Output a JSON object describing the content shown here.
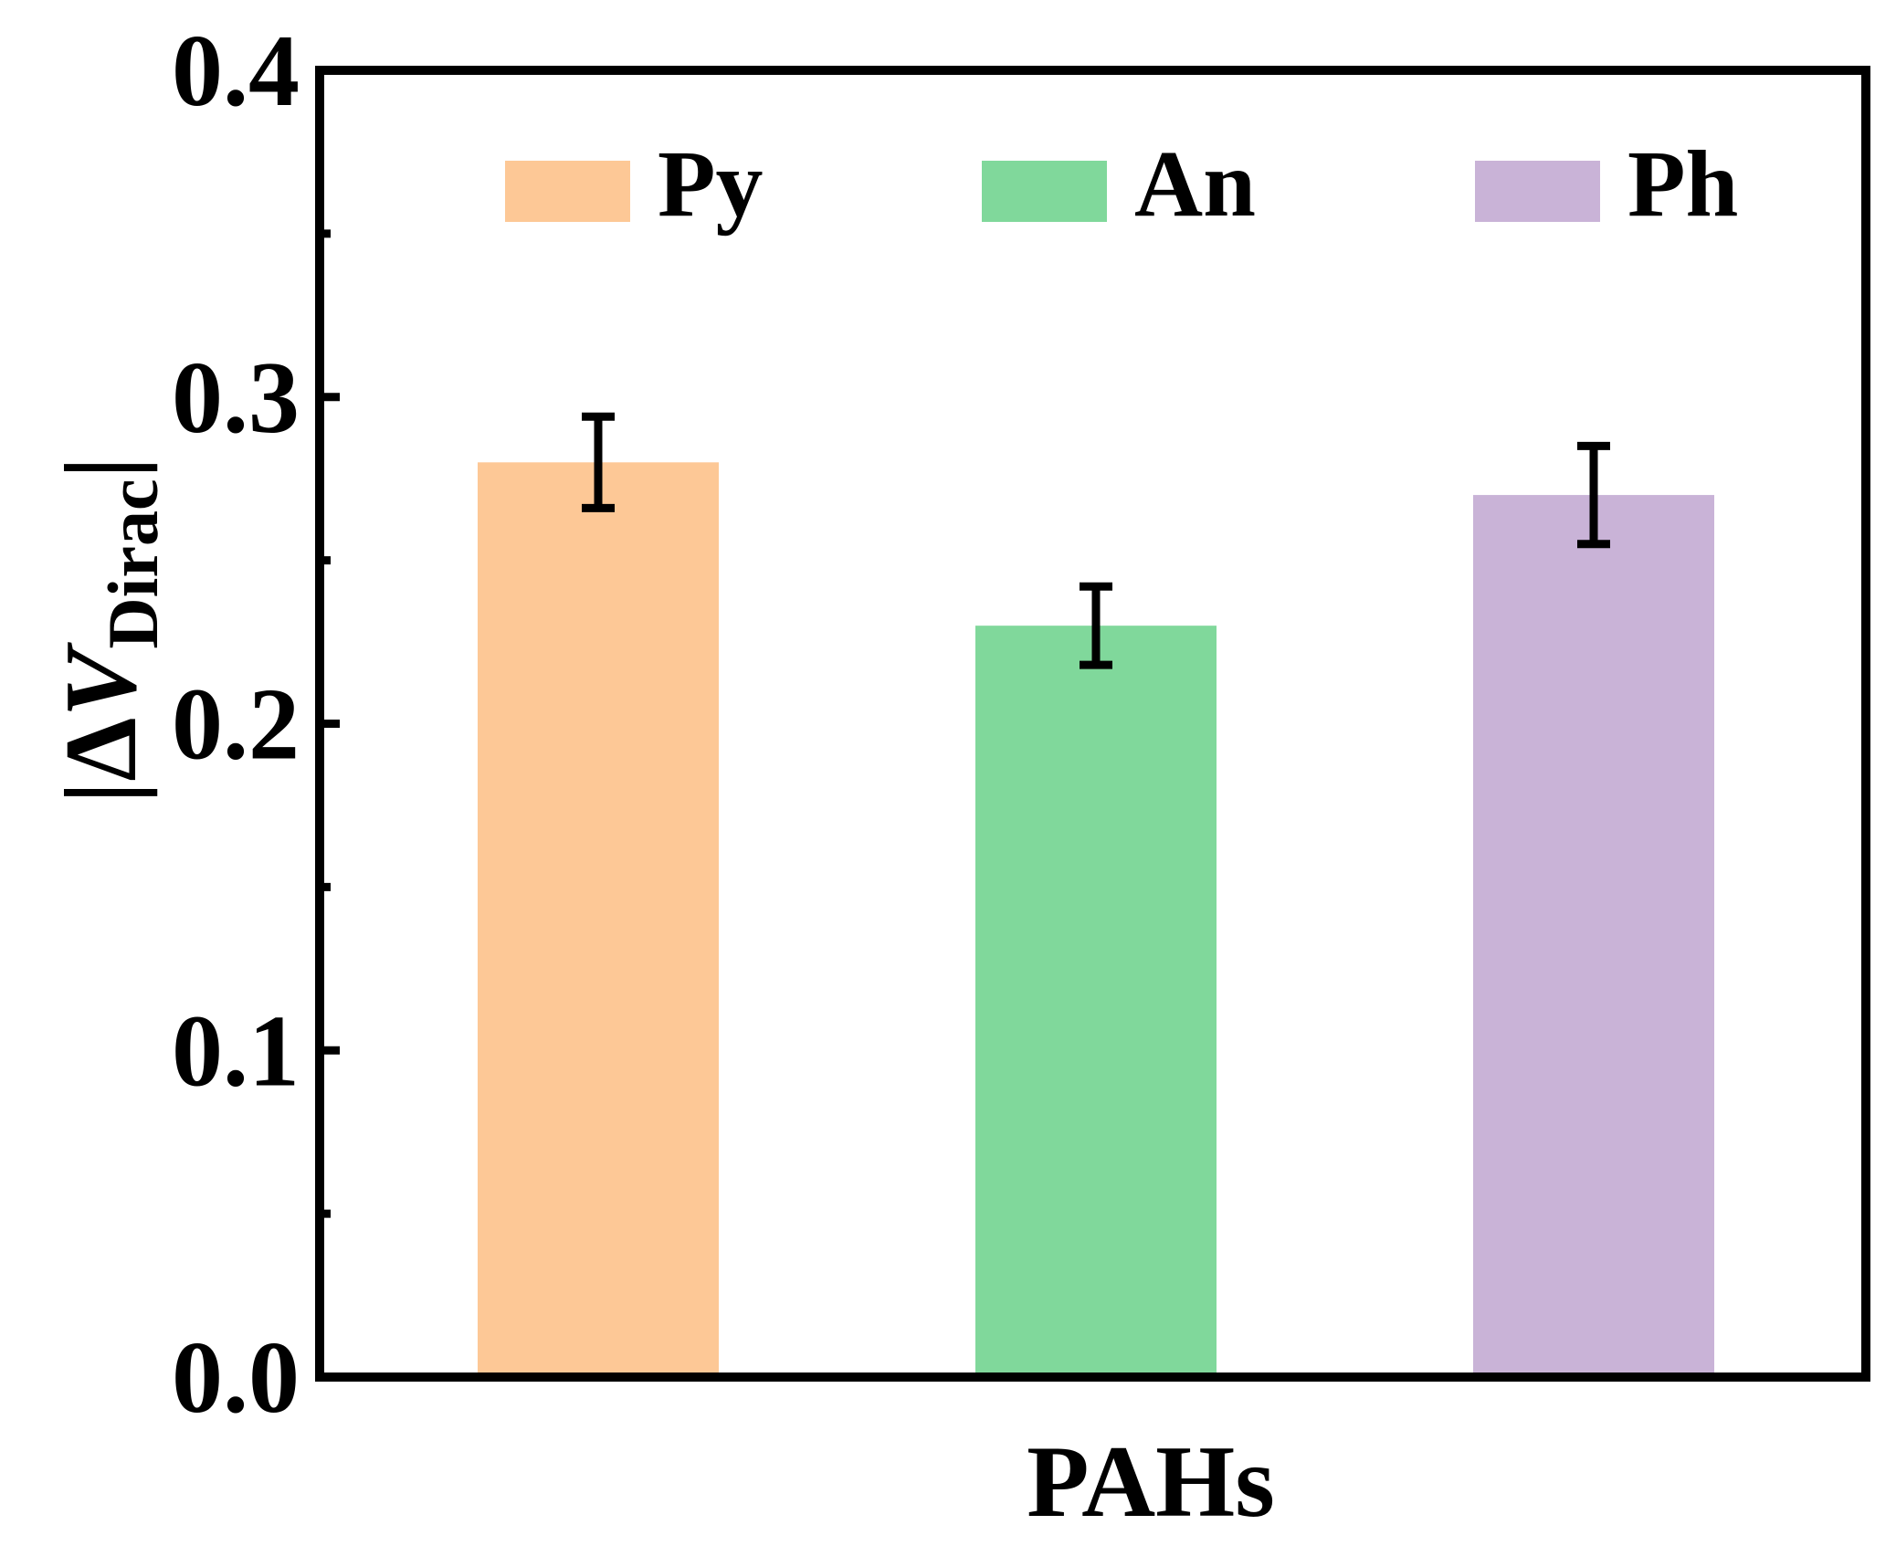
{
  "chart_data": {
    "type": "bar",
    "title": "",
    "categories": [
      "Py",
      "An",
      "Ph"
    ],
    "values": [
      0.28,
      0.23,
      0.27
    ],
    "errors": [
      0.014,
      0.012,
      0.015
    ],
    "colors": [
      "#FDC896",
      "#80D89B",
      "#C9B3D7"
    ],
    "xlabel": "PAHs",
    "ylabel": {
      "prefix": "|Δ",
      "var": "V",
      "sub": "Dirac",
      "suffix": "|"
    },
    "ylim": [
      0,
      0.4
    ],
    "yticks": [
      0.0,
      0.1,
      0.2,
      0.3,
      0.4
    ],
    "ytick_labels": [
      "0.0",
      "0.1",
      "0.2",
      "0.3",
      "0.4"
    ],
    "legend": {
      "placement": "top",
      "entries": [
        "Py",
        "An",
        "Ph"
      ]
    }
  }
}
